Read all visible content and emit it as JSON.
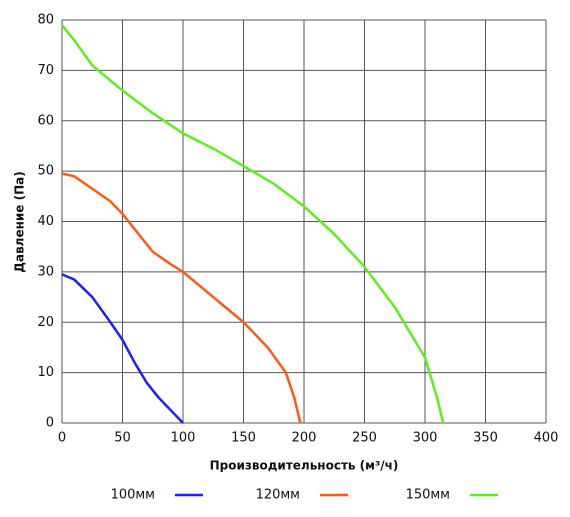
{
  "chart_data": {
    "type": "line",
    "xlabel": "Производительность (м³/ч)",
    "ylabel": "Давление (Па)",
    "xlim": [
      0,
      400
    ],
    "xticks": [
      0,
      50,
      100,
      150,
      200,
      250,
      300,
      350,
      400
    ],
    "ylim": [
      0,
      80
    ],
    "yticks": [
      0,
      10,
      20,
      30,
      40,
      50,
      60,
      70,
      80
    ],
    "grid": true,
    "legend": "bottom",
    "series": [
      {
        "name": "100мм",
        "color": "#1f1fff",
        "x": [
          0,
          10,
          25,
          40,
          50,
          60,
          70,
          80,
          90,
          100
        ],
        "values": [
          29.5,
          28.5,
          25,
          20,
          16.5,
          12,
          8,
          5,
          2.5,
          0
        ]
      },
      {
        "name": "120мм",
        "color": "#ff5a14",
        "x": [
          0,
          10,
          25,
          40,
          50,
          60,
          75,
          90,
          100,
          125,
          150,
          170,
          185,
          192,
          196,
          197
        ],
        "values": [
          49.5,
          49,
          46.5,
          44,
          41.5,
          38.5,
          34,
          31.5,
          30,
          25,
          20,
          15,
          10,
          5,
          1,
          0
        ]
      },
      {
        "name": "150мм",
        "color": "#5cf01a",
        "x": [
          0,
          10,
          25,
          50,
          75,
          100,
          125,
          150,
          175,
          200,
          225,
          250,
          275,
          300,
          310,
          315
        ],
        "values": [
          79,
          76,
          71,
          66,
          61.5,
          57.5,
          54.5,
          51,
          47.5,
          43,
          37.5,
          31,
          23,
          13,
          5,
          0
        ]
      }
    ]
  }
}
